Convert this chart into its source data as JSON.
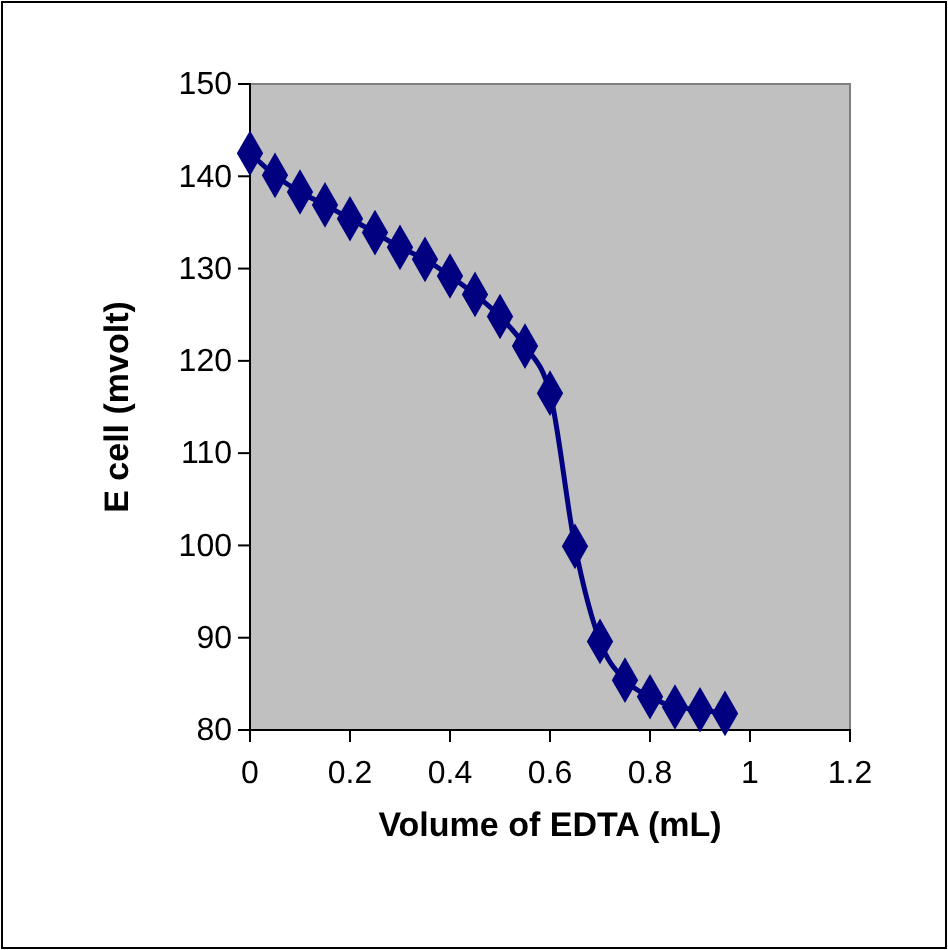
{
  "chart_data": {
    "type": "line",
    "xlabel": "Volume of EDTA (mL)",
    "ylabel": "E cell (mvolt)",
    "x": [
      0,
      0.05,
      0.1,
      0.15,
      0.2,
      0.25,
      0.3,
      0.35,
      0.4,
      0.45,
      0.5,
      0.55,
      0.6,
      0.65,
      0.7,
      0.75,
      0.8,
      0.85,
      0.9,
      0.95
    ],
    "series": [
      {
        "color": "#000080",
        "values": [
          142.5,
          140.1,
          138.3,
          136.9,
          135.4,
          133.9,
          132.3,
          131.0,
          129.2,
          127.2,
          124.8,
          121.6,
          116.5,
          99.9,
          89.6,
          85.4,
          83.6,
          82.5,
          82.2,
          81.8
        ]
      }
    ],
    "xlim": [
      0,
      1.2
    ],
    "xticks": [
      0,
      0.2,
      0.4,
      0.6,
      0.8,
      1,
      1.2
    ],
    "ylim": [
      80,
      150
    ],
    "yticks": [
      80,
      90,
      100,
      110,
      120,
      130,
      140,
      150
    ],
    "marker": "diamond",
    "line_style": "solid",
    "grid": false
  }
}
